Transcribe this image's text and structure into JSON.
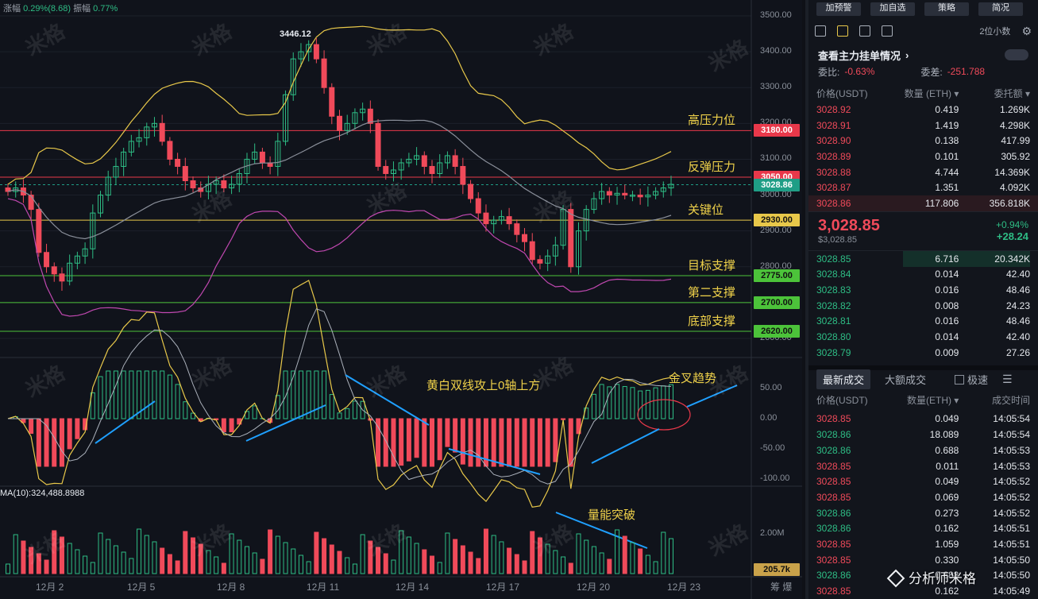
{
  "header": {
    "change_label": "涨幅",
    "change_value": "0.29%(8.68)",
    "amplitude_label": "振幅",
    "amplitude_value": "0.77%"
  },
  "chart": {
    "high_marker": "3446.12",
    "y_axis_ticks": [
      "3500.00",
      "3400.00",
      "3300.00",
      "3200.00",
      "3100.00",
      "3000.00",
      "2900.00",
      "2800.00",
      "2700.00",
      "2600.00"
    ],
    "x_axis_ticks": [
      "12月 2",
      "12月 5",
      "12月 8",
      "12月 11",
      "12月 14",
      "12月 17",
      "12月 20",
      "12月 23"
    ],
    "x_axis_extra": "筹 爆",
    "levels": [
      {
        "label": "高压力位",
        "value": "3180.00",
        "color": "red"
      },
      {
        "label": "反弹压力",
        "value": "3050.00",
        "color": "red"
      },
      {
        "label": "",
        "value": "3028.86",
        "color": "teal"
      },
      {
        "label": "关键位",
        "value": "2930.00",
        "color": "yellow"
      },
      {
        "label": "目标支撑",
        "value": "2775.00",
        "color": "green"
      },
      {
        "label": "第二支撑",
        "value": "2700.00",
        "color": "green"
      },
      {
        "label": "底部支撑",
        "value": "2620.00",
        "color": "green"
      }
    ],
    "macd_ticks": [
      "50.00",
      "0.00",
      "-50.00",
      "-100.00"
    ],
    "macd_annotations": {
      "cross_text": "黄白双线攻上0轴上方",
      "golden_cross": "金叉趋势"
    },
    "volume": {
      "ma_label": "MA(10):324,488.8988",
      "tick": "2.00M",
      "current": "205.7k",
      "annotation": "量能突破"
    },
    "watermark": "米格",
    "colors": {
      "up": "#2ebd85",
      "down": "#f04a5a",
      "upper_band": "#e8c84a",
      "lower_band": "#c048b0"
    }
  },
  "chart_data": {
    "type": "candlestick",
    "x_categories": [
      "12月 2",
      "12月 5",
      "12月 8",
      "12月 11",
      "12月 14",
      "12月 17",
      "12月 20",
      "12月 23"
    ],
    "ylim": [
      2560,
      3520
    ],
    "price_high": 3446.12,
    "last_price": 3028.86,
    "horizontal_levels": [
      3180,
      3050,
      2930,
      2775,
      2700,
      2620
    ],
    "closes": [
      3010,
      3020,
      3000,
      2960,
      2840,
      2800,
      2780,
      2760,
      2810,
      2830,
      2850,
      2950,
      3000,
      3050,
      3080,
      3120,
      3150,
      3160,
      3190,
      3200,
      3150,
      3100,
      3080,
      3040,
      3020,
      3010,
      3030,
      3040,
      3020,
      3030,
      3060,
      3100,
      3120,
      3090,
      3080,
      3150,
      3280,
      3380,
      3400,
      3420,
      3380,
      3300,
      3220,
      3180,
      3200,
      3230,
      3240,
      3200,
      3080,
      3060,
      3070,
      3090,
      3100,
      3110,
      3080,
      3060,
      3090,
      3110,
      3080,
      3030,
      2990,
      2950,
      2920,
      2930,
      2940,
      2920,
      2890,
      2870,
      2820,
      2810,
      2830,
      2860,
      2960,
      2800,
      2900,
      2960,
      2990,
      3010,
      3000,
      3005,
      3000,
      3000,
      2995,
      3000,
      3010,
      3020,
      3030
    ]
  },
  "sidebar": {
    "buttons": [
      "加预警",
      "加自选",
      "策略",
      "简况"
    ],
    "decimals": "2位小数",
    "title": "查看主力挂单情况",
    "ratio_label": "委比:",
    "ratio_value": "-0.63%",
    "diff_label": "委差:",
    "diff_value": "-251.788",
    "ob_headers": [
      "价格(USDT)",
      "数量 (ETH) ▾",
      "委托额 ▾"
    ],
    "asks": [
      [
        "3028.92",
        "0.419",
        "1.269K"
      ],
      [
        "3028.91",
        "1.419",
        "4.298K"
      ],
      [
        "3028.90",
        "0.138",
        "417.99"
      ],
      [
        "3028.89",
        "0.101",
        "305.92"
      ],
      [
        "3028.88",
        "4.744",
        "14.369K"
      ],
      [
        "3028.87",
        "1.351",
        "4.092K"
      ],
      [
        "3028.86",
        "117.806",
        "356.818K"
      ]
    ],
    "last_price": "3,028.85",
    "last_usd": "$3,028.85",
    "change_pct": "+0.94%",
    "change_abs": "+28.24",
    "bids": [
      [
        "3028.85",
        "6.716",
        "20.342K"
      ],
      [
        "3028.84",
        "0.014",
        "42.40"
      ],
      [
        "3028.83",
        "0.016",
        "48.46"
      ],
      [
        "3028.82",
        "0.008",
        "24.23"
      ],
      [
        "3028.81",
        "0.016",
        "48.46"
      ],
      [
        "3028.80",
        "0.014",
        "42.40"
      ],
      [
        "3028.79",
        "0.009",
        "27.26"
      ]
    ],
    "tabs": [
      "最新成交",
      "大额成交"
    ],
    "fast_label": "极速",
    "trade_headers": [
      "价格(USDT)",
      "数量(ETH) ▾",
      "成交时间"
    ],
    "trades": [
      [
        "3028.85",
        "0.049",
        "14:05:54",
        "sell"
      ],
      [
        "3028.86",
        "18.089",
        "14:05:54",
        "buy"
      ],
      [
        "3028.86",
        "0.688",
        "14:05:53",
        "buy"
      ],
      [
        "3028.85",
        "0.011",
        "14:05:53",
        "sell"
      ],
      [
        "3028.85",
        "0.049",
        "14:05:52",
        "sell"
      ],
      [
        "3028.85",
        "0.069",
        "14:05:52",
        "sell"
      ],
      [
        "3028.86",
        "0.273",
        "14:05:52",
        "buy"
      ],
      [
        "3028.86",
        "0.162",
        "14:05:51",
        "buy"
      ],
      [
        "3028.85",
        "1.059",
        "14:05:51",
        "sell"
      ],
      [
        "3028.85",
        "0.330",
        "14:05:50",
        "sell"
      ],
      [
        "3028.86",
        "0.688",
        "14:05:50",
        "buy"
      ],
      [
        "3028.85",
        "0.162",
        "14:05:49",
        "sell"
      ]
    ],
    "brand": "分析师米格"
  }
}
